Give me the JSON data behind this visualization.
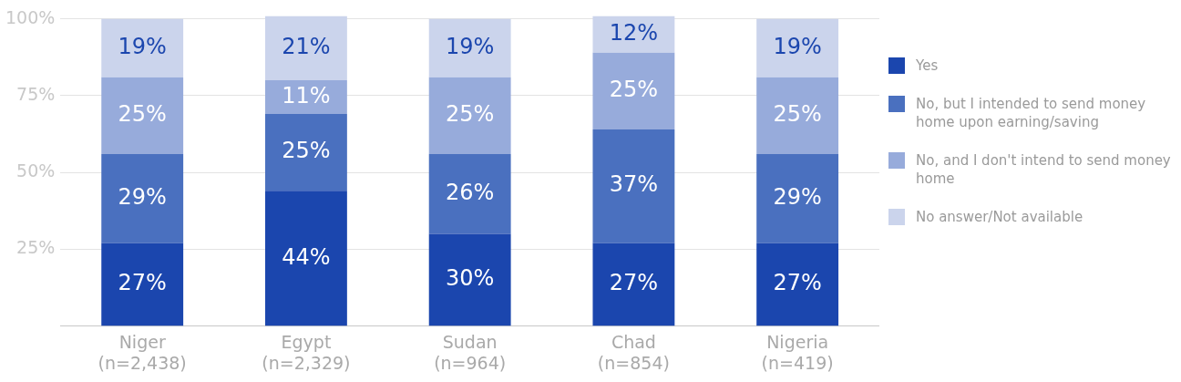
{
  "chart_data": {
    "type": "bar",
    "stacked": true,
    "categories": [
      "Niger\n(n=2,438)",
      "Egypt\n(n=2,329)",
      "Sudan\n(n=964)",
      "Chad\n(n=854)",
      "Nigeria\n(n=419)"
    ],
    "series": [
      {
        "name": "Yes",
        "color": "#1b46ae",
        "values": [
          27,
          44,
          30,
          27,
          27
        ],
        "value_labels": [
          "27%",
          "44%",
          "30%",
          "27%",
          "27%"
        ]
      },
      {
        "name": "No, but I intended to send money home upon earning/saving",
        "color": "#4a70bf",
        "values": [
          29,
          25,
          26,
          37,
          29
        ],
        "value_labels": [
          "29%",
          "25%",
          "26%",
          "37%",
          "29%"
        ]
      },
      {
        "name": "No, and I don't intend to send money home",
        "color": "#97abdb",
        "values": [
          25,
          11,
          25,
          25,
          25
        ],
        "value_labels": [
          "25%",
          "11%",
          "25%",
          "25%",
          "25%"
        ]
      },
      {
        "name": "No answer/Not available",
        "color": "#cbd4ec",
        "values": [
          19,
          21,
          19,
          12,
          19
        ],
        "value_labels": [
          "19%",
          "21%",
          "19%",
          "12%",
          "19%"
        ]
      }
    ],
    "ylim": [
      0,
      101
    ],
    "yticks": [
      {
        "value": 25,
        "label": "25%"
      },
      {
        "value": 50,
        "label": "50%"
      },
      {
        "value": 75,
        "label": "75%"
      },
      {
        "value": 100,
        "label": "100%"
      }
    ],
    "grid": "y",
    "legend": "right"
  }
}
